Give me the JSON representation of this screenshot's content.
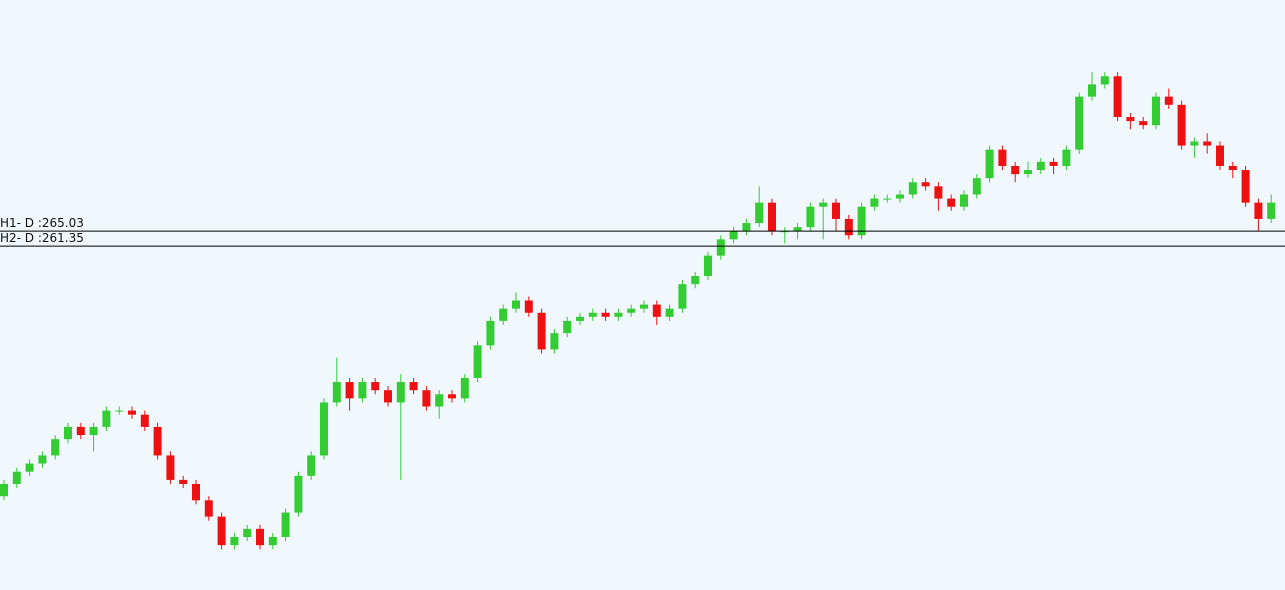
{
  "chart_data": {
    "type": "candlestick",
    "ylim": [
      177,
      321.7
    ],
    "up_color": "#33cc33",
    "down_color": "#ee1111",
    "levels": [
      {
        "label": "H1- D :265.03",
        "value": 265.03
      },
      {
        "label": "H2- D :261.35",
        "value": 261.35
      }
    ],
    "open": [
      200,
      203,
      206,
      208,
      210,
      214,
      217,
      215,
      217,
      221,
      221,
      220,
      217,
      210,
      204,
      203,
      199,
      195,
      188,
      190,
      192,
      188,
      190,
      196,
      205,
      210,
      223,
      228,
      224,
      228,
      226,
      223,
      228,
      226,
      222,
      225,
      224,
      229,
      237,
      243,
      246,
      248,
      245,
      236,
      240,
      243,
      244,
      245,
      244,
      245,
      246,
      247,
      244,
      246,
      252,
      254,
      259,
      263,
      265,
      267,
      272,
      265,
      265,
      266,
      271,
      272,
      268,
      264,
      271,
      273,
      273,
      274,
      277,
      276,
      273,
      271,
      274,
      278,
      285,
      281,
      279,
      280,
      282,
      281,
      285,
      298,
      301,
      303,
      293,
      292,
      291,
      298,
      296,
      286,
      287,
      286,
      281,
      280,
      272,
      268
    ],
    "high": [
      204,
      207,
      209,
      211,
      215,
      218,
      218,
      218,
      222,
      222,
      222,
      221,
      218,
      211,
      205,
      204,
      200,
      196,
      191,
      193,
      193,
      191,
      197,
      206,
      211,
      224,
      234,
      229,
      229,
      229,
      227,
      230,
      229,
      227,
      226,
      226,
      230,
      238,
      244,
      247,
      250,
      249,
      246,
      241,
      244,
      245,
      246,
      246,
      246,
      247,
      248,
      248,
      247,
      253,
      255,
      260,
      264,
      266,
      268,
      276,
      273,
      266,
      267,
      272,
      273,
      273,
      269,
      272,
      274,
      274,
      275,
      278,
      278,
      277,
      274,
      275,
      279,
      286,
      286,
      282,
      282,
      283,
      283,
      286,
      299,
      304,
      304,
      304,
      294,
      293,
      299,
      300,
      297,
      288,
      289,
      287,
      282,
      281,
      273,
      274
    ],
    "low": [
      199,
      202,
      205,
      207,
      209,
      213,
      214,
      211,
      216,
      220,
      219,
      216,
      209,
      203,
      202,
      198,
      194,
      187,
      187,
      189,
      187,
      187,
      189,
      195,
      204,
      209,
      222,
      221,
      223,
      225,
      222,
      204,
      225,
      221,
      219,
      223,
      223,
      228,
      236,
      242,
      245,
      244,
      235,
      235,
      239,
      242,
      243,
      243,
      243,
      244,
      245,
      242,
      243,
      245,
      251,
      253,
      258,
      262,
      264,
      266,
      264,
      262,
      263,
      265,
      263,
      265,
      263,
      263,
      270,
      272,
      272,
      273,
      275,
      270,
      270,
      270,
      273,
      277,
      280,
      277,
      278,
      279,
      279,
      280,
      284,
      297,
      300,
      292,
      290,
      290,
      290,
      295,
      285,
      283,
      284,
      280,
      278,
      271,
      265,
      267
    ],
    "close": [
      203,
      206,
      208,
      210,
      214,
      217,
      215,
      217,
      221,
      221,
      220,
      217,
      210,
      204,
      203,
      199,
      195,
      188,
      190,
      192,
      188,
      190,
      196,
      205,
      210,
      223,
      228,
      224,
      228,
      226,
      223,
      228,
      226,
      222,
      225,
      224,
      229,
      237,
      243,
      246,
      248,
      245,
      236,
      240,
      243,
      244,
      245,
      244,
      245,
      246,
      247,
      244,
      246,
      252,
      254,
      259,
      263,
      265,
      267,
      272,
      265,
      265,
      266,
      271,
      272,
      268,
      264,
      271,
      273,
      273,
      274,
      277,
      276,
      273,
      271,
      274,
      278,
      285,
      281,
      279,
      280,
      282,
      281,
      285,
      298,
      301,
      303,
      293,
      292,
      291,
      298,
      296,
      286,
      287,
      286,
      281,
      280,
      272,
      268,
      272
    ]
  }
}
